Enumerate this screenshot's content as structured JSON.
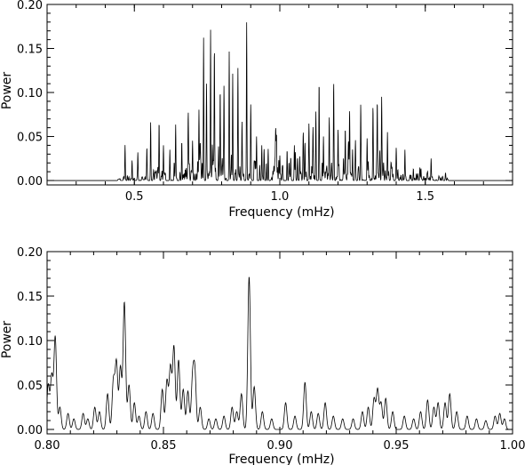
{
  "chart_data": [
    {
      "type": "line",
      "title": "",
      "xlabel": "Frequency (mHz)",
      "ylabel": "Power",
      "xlim": [
        0.2,
        1.8
      ],
      "ylim": [
        -0.005,
        0.2
      ],
      "xticks": [
        {
          "value": 0.5,
          "label": "0.5"
        },
        {
          "value": 1.0,
          "label": "1.0"
        },
        {
          "value": 1.5,
          "label": "1.5"
        }
      ],
      "yticks": [
        {
          "value": 0.0,
          "label": "0.00"
        },
        {
          "value": 0.05,
          "label": "0.05"
        },
        {
          "value": 0.1,
          "label": "0.10"
        },
        {
          "value": 0.15,
          "label": "0.15"
        },
        {
          "value": 0.2,
          "label": "0.20"
        }
      ],
      "grid": false,
      "envelope": {
        "x_start": 0.44,
        "x_end": 1.58,
        "noise_level": 0.018
      },
      "peaks": [
        [
          0.468,
          0.04
        ],
        [
          0.492,
          0.02
        ],
        [
          0.512,
          0.03
        ],
        [
          0.543,
          0.037
        ],
        [
          0.556,
          0.066
        ],
        [
          0.585,
          0.067
        ],
        [
          0.6,
          0.04
        ],
        [
          0.622,
          0.035
        ],
        [
          0.642,
          0.063
        ],
        [
          0.663,
          0.045
        ],
        [
          0.685,
          0.068
        ],
        [
          0.7,
          0.045
        ],
        [
          0.722,
          0.08
        ],
        [
          0.738,
          0.162
        ],
        [
          0.748,
          0.11
        ],
        [
          0.762,
          0.17
        ],
        [
          0.775,
          0.12
        ],
        [
          0.795,
          0.1
        ],
        [
          0.808,
          0.08
        ],
        [
          0.826,
          0.145
        ],
        [
          0.838,
          0.11
        ],
        [
          0.856,
          0.125
        ],
        [
          0.87,
          0.06
        ],
        [
          0.886,
          0.172
        ],
        [
          0.9,
          0.065
        ],
        [
          0.92,
          0.05
        ],
        [
          0.938,
          0.04
        ],
        [
          0.96,
          0.035
        ],
        [
          0.985,
          0.03
        ],
        [
          1.0,
          0.028
        ],
        [
          1.025,
          0.035
        ],
        [
          1.05,
          0.04
        ],
        [
          1.08,
          0.035
        ],
        [
          1.1,
          0.045
        ],
        [
          1.124,
          0.065
        ],
        [
          1.135,
          0.112
        ],
        [
          1.15,
          0.05
        ],
        [
          1.17,
          0.06
        ],
        [
          1.185,
          0.085
        ],
        [
          1.2,
          0.045
        ],
        [
          1.225,
          0.06
        ],
        [
          1.24,
          0.068
        ],
        [
          1.26,
          0.045
        ],
        [
          1.278,
          0.07
        ],
        [
          1.3,
          0.045
        ],
        [
          1.32,
          0.06
        ],
        [
          1.335,
          0.09
        ],
        [
          1.35,
          0.093
        ],
        [
          1.37,
          0.055
        ],
        [
          1.4,
          0.035
        ],
        [
          1.43,
          0.035
        ],
        [
          1.52,
          0.025
        ]
      ]
    },
    {
      "type": "line",
      "title": "",
      "xlabel": "Frequency (mHz)",
      "ylabel": "Power",
      "xlim": [
        0.8,
        1.0
      ],
      "ylim": [
        -0.005,
        0.2
      ],
      "xticks": [
        {
          "value": 0.8,
          "label": "0.80"
        },
        {
          "value": 0.85,
          "label": "0.85"
        },
        {
          "value": 0.9,
          "label": "0.90"
        },
        {
          "value": 0.95,
          "label": "0.95"
        },
        {
          "value": 1.0,
          "label": "1.00"
        }
      ],
      "yticks": [
        {
          "value": 0.0,
          "label": "0.00"
        },
        {
          "value": 0.05,
          "label": "0.05"
        },
        {
          "value": 0.1,
          "label": "0.10"
        },
        {
          "value": 0.15,
          "label": "0.15"
        },
        {
          "value": 0.2,
          "label": "0.20"
        }
      ],
      "grid": false,
      "peaks": [
        [
          0.8005,
          0.05
        ],
        [
          0.802,
          0.06
        ],
        [
          0.8035,
          0.104
        ],
        [
          0.8055,
          0.025
        ],
        [
          0.809,
          0.018
        ],
        [
          0.8115,
          0.012
        ],
        [
          0.8155,
          0.018
        ],
        [
          0.8175,
          0.012
        ],
        [
          0.8205,
          0.025
        ],
        [
          0.8225,
          0.02
        ],
        [
          0.826,
          0.04
        ],
        [
          0.8285,
          0.055
        ],
        [
          0.8298,
          0.075
        ],
        [
          0.8315,
          0.07
        ],
        [
          0.8332,
          0.143
        ],
        [
          0.8352,
          0.05
        ],
        [
          0.8375,
          0.03
        ],
        [
          0.8395,
          0.015
        ],
        [
          0.8425,
          0.02
        ],
        [
          0.8455,
          0.018
        ],
        [
          0.8495,
          0.045
        ],
        [
          0.8515,
          0.055
        ],
        [
          0.853,
          0.07
        ],
        [
          0.8545,
          0.093
        ],
        [
          0.8565,
          0.078
        ],
        [
          0.8585,
          0.045
        ],
        [
          0.8605,
          0.043
        ],
        [
          0.8625,
          0.055
        ],
        [
          0.8635,
          0.062
        ],
        [
          0.8658,
          0.025
        ],
        [
          0.8695,
          0.012
        ],
        [
          0.8725,
          0.012
        ],
        [
          0.876,
          0.015
        ],
        [
          0.8795,
          0.025
        ],
        [
          0.8815,
          0.02
        ],
        [
          0.8835,
          0.04
        ],
        [
          0.8868,
          0.172
        ],
        [
          0.889,
          0.048
        ],
        [
          0.8925,
          0.02
        ],
        [
          0.8965,
          0.012
        ],
        [
          0.9025,
          0.03
        ],
        [
          0.9065,
          0.015
        ],
        [
          0.9108,
          0.053
        ],
        [
          0.9135,
          0.02
        ],
        [
          0.9165,
          0.018
        ],
        [
          0.9195,
          0.03
        ],
        [
          0.923,
          0.015
        ],
        [
          0.927,
          0.012
        ],
        [
          0.9315,
          0.012
        ],
        [
          0.9355,
          0.02
        ],
        [
          0.938,
          0.025
        ],
        [
          0.9405,
          0.035
        ],
        [
          0.942,
          0.045
        ],
        [
          0.9435,
          0.03
        ],
        [
          0.9455,
          0.035
        ],
        [
          0.9485,
          0.02
        ],
        [
          0.9535,
          0.015
        ],
        [
          0.9575,
          0.012
        ],
        [
          0.9605,
          0.02
        ],
        [
          0.9635,
          0.033
        ],
        [
          0.9662,
          0.025
        ],
        [
          0.968,
          0.03
        ],
        [
          0.971,
          0.03
        ],
        [
          0.973,
          0.04
        ],
        [
          0.976,
          0.02
        ],
        [
          0.9805,
          0.015
        ],
        [
          0.9845,
          0.012
        ],
        [
          0.9885,
          0.01
        ],
        [
          0.9925,
          0.015
        ],
        [
          0.9945,
          0.018
        ],
        [
          0.9965,
          0.012
        ]
      ]
    }
  ]
}
